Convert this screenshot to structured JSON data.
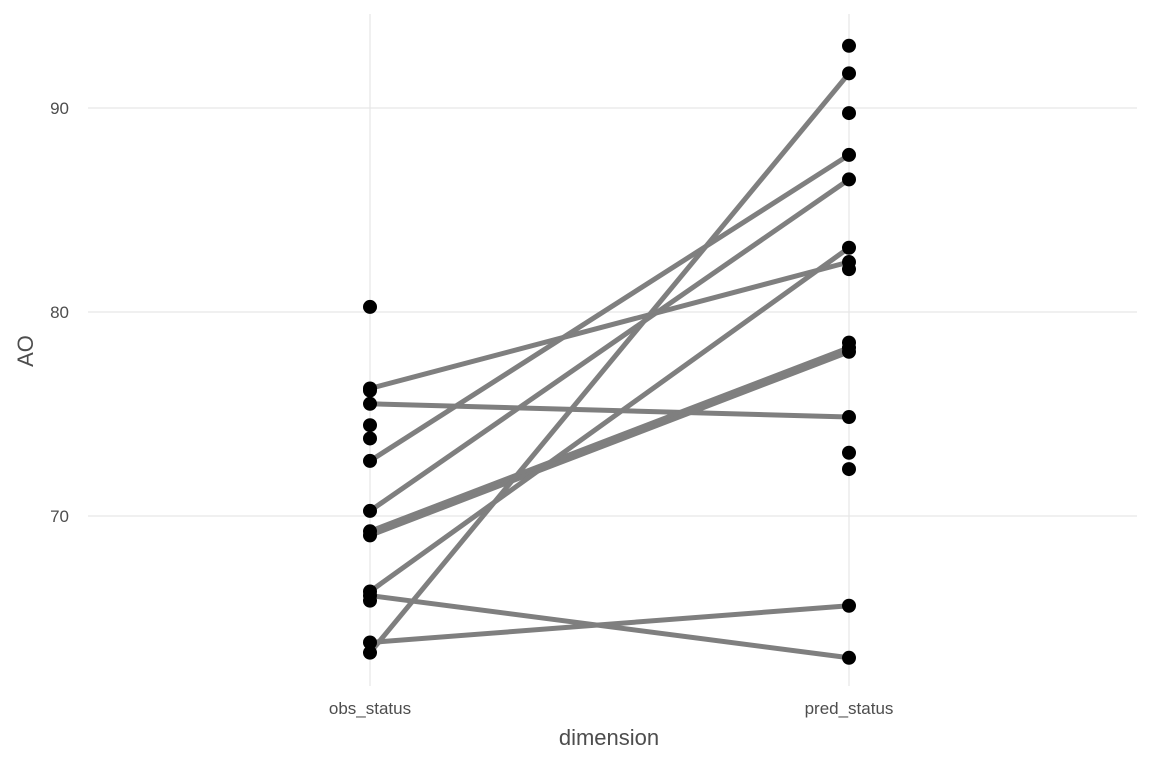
{
  "chart_data": {
    "type": "line",
    "xlabel": "dimension",
    "ylabel": "AO",
    "categories": [
      "obs_status",
      "pred_status"
    ],
    "ylim": [
      62,
      94
    ],
    "yticks": [
      70,
      80,
      90
    ],
    "grid": true,
    "line_color": "#7f7f7f",
    "point_color": "#000000",
    "points": {
      "obs_status": [
        80.25,
        76.25,
        76.15,
        75.5,
        74.45,
        73.8,
        72.7,
        70.25,
        69.25,
        69.05,
        66.3,
        66.1,
        65.85,
        63.8,
        63.3
      ],
      "pred_status": [
        93.05,
        91.7,
        89.75,
        87.7,
        86.5,
        83.15,
        82.45,
        82.1,
        78.5,
        78.25,
        78.05,
        74.85,
        73.1,
        72.3,
        65.6,
        63.05
      ]
    },
    "pairs": [
      {
        "obs": 76.25,
        "pred": 82.45
      },
      {
        "obs": 75.5,
        "pred": 74.85
      },
      {
        "obs": 72.7,
        "pred": 87.7
      },
      {
        "obs": 70.25,
        "pred": 86.5
      },
      {
        "obs": 69.25,
        "pred": 78.25
      },
      {
        "obs": 69.05,
        "pred": 78.05
      },
      {
        "obs": 66.3,
        "pred": 83.15
      },
      {
        "obs": 66.1,
        "pred": 63.05
      },
      {
        "obs": 63.8,
        "pred": 65.6
      },
      {
        "obs": 63.3,
        "pred": 91.7
      }
    ]
  }
}
